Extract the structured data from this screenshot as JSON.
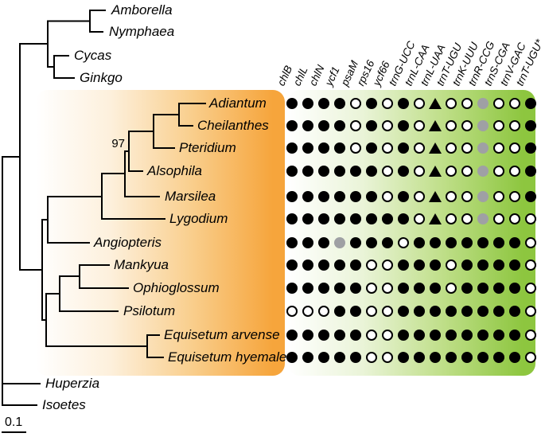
{
  "figure": {
    "type": "phylogenetic-tree-with-gene-presence-matrix",
    "bootstrap_label": "97",
    "scale_bar_label": "0.1",
    "colors": {
      "tree_line": "#000000",
      "orange_box_end": "#f6a53c",
      "green_box_end": "#8dc63f",
      "filled_symbol": "#000000",
      "open_symbol_fill": "#ffffff",
      "gray_symbol": "#9fa0a4"
    },
    "tree": {
      "taxa": [
        "Amborella",
        "Nymphaea",
        "Cycas",
        "Ginkgo",
        "Adiantum",
        "Cheilanthes",
        "Pteridium",
        "Alsophila",
        "Marsilea",
        "Lygodium",
        "Angiopteris",
        "Mankyua",
        "Ophioglossum",
        "Psilotum",
        "Equisetum arvense",
        "Equisetum hyemale",
        "Huperzia",
        "Isoetes"
      ]
    },
    "matrix": {
      "columns": [
        "chlB",
        "chlL",
        "chlN",
        "ycf1",
        "psaM",
        "rps16",
        "ycf66",
        "trnG-UCC",
        "trnL-CAA",
        "trnL-UAA",
        "trnT-UGU",
        "trnK-UUU",
        "trnR-CCG",
        "trnS-CGA",
        "trnV-GAC",
        "trnT-UGU*"
      ],
      "symbol_legend": {
        "filled": "black-circle",
        "open": "white-circle-black-outline",
        "gray": "gray-circle",
        "triangle": "black-triangle"
      },
      "rows": [
        {
          "taxon": "Adiantum",
          "cells": [
            "filled",
            "filled",
            "filled",
            "filled",
            "open",
            "filled",
            "open",
            "filled",
            "open",
            "triangle",
            "open",
            "open",
            "gray",
            "open",
            "open",
            "filled"
          ]
        },
        {
          "taxon": "Cheilanthes",
          "cells": [
            "filled",
            "filled",
            "filled",
            "filled",
            "open",
            "filled",
            "open",
            "filled",
            "open",
            "triangle",
            "open",
            "open",
            "gray",
            "open",
            "open",
            "filled"
          ]
        },
        {
          "taxon": "Pteridium",
          "cells": [
            "filled",
            "filled",
            "filled",
            "filled",
            "open",
            "filled",
            "open",
            "filled",
            "open",
            "triangle",
            "open",
            "open",
            "gray",
            "open",
            "open",
            "filled"
          ]
        },
        {
          "taxon": "Alsophila",
          "cells": [
            "filled",
            "filled",
            "filled",
            "filled",
            "filled",
            "filled",
            "open",
            "filled",
            "open",
            "triangle",
            "open",
            "open",
            "gray",
            "open",
            "open",
            "filled"
          ]
        },
        {
          "taxon": "Marsilea",
          "cells": [
            "filled",
            "filled",
            "filled",
            "filled",
            "filled",
            "filled",
            "open",
            "filled",
            "open",
            "triangle",
            "open",
            "open",
            "gray",
            "open",
            "open",
            "filled"
          ]
        },
        {
          "taxon": "Lygodium",
          "cells": [
            "filled",
            "filled",
            "filled",
            "filled",
            "filled",
            "filled",
            "filled",
            "filled",
            "open",
            "triangle",
            "open",
            "open",
            "gray",
            "open",
            "open",
            "open"
          ]
        },
        {
          "taxon": "Angiopteris",
          "cells": [
            "filled",
            "filled",
            "filled",
            "gray",
            "filled",
            "filled",
            "filled",
            "open",
            "filled",
            "filled",
            "filled",
            "filled",
            "filled",
            "filled",
            "filled",
            "open"
          ]
        },
        {
          "taxon": "Mankyua",
          "cells": [
            "filled",
            "filled",
            "filled",
            "filled",
            "filled",
            "open",
            "open",
            "filled",
            "filled",
            "filled",
            "open",
            "filled",
            "filled",
            "filled",
            "filled",
            "open"
          ]
        },
        {
          "taxon": "Ophioglossum",
          "cells": [
            "filled",
            "filled",
            "filled",
            "filled",
            "filled",
            "open",
            "open",
            "filled",
            "filled",
            "filled",
            "open",
            "filled",
            "filled",
            "filled",
            "filled",
            "open"
          ]
        },
        {
          "taxon": "Psilotum",
          "cells": [
            "open",
            "open",
            "open",
            "filled",
            "filled",
            "open",
            "open",
            "filled",
            "filled",
            "filled",
            "filled",
            "filled",
            "filled",
            "filled",
            "filled",
            "open"
          ]
        },
        {
          "taxon": "Equisetum arvense",
          "cells": [
            "filled",
            "filled",
            "filled",
            "filled",
            "filled",
            "open",
            "open",
            "filled",
            "filled",
            "filled",
            "filled",
            "filled",
            "filled",
            "filled",
            "filled",
            "open"
          ]
        },
        {
          "taxon": "Equisetum hyemale",
          "cells": [
            "filled",
            "filled",
            "filled",
            "filled",
            "filled",
            "open",
            "open",
            "filled",
            "filled",
            "filled",
            "filled",
            "filled",
            "filled",
            "filled",
            "filled",
            "open"
          ]
        }
      ]
    }
  }
}
